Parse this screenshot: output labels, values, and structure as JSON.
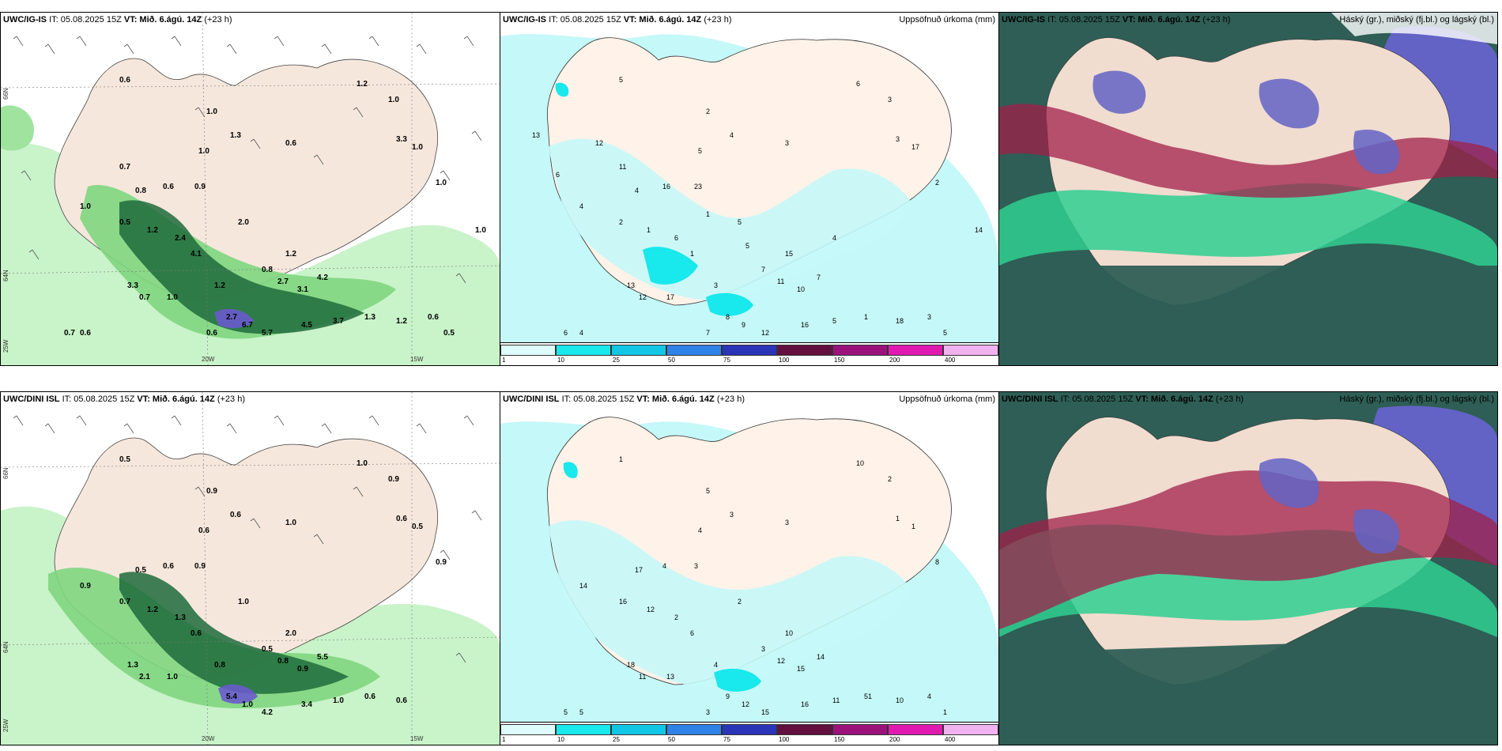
{
  "colors": {
    "land": "#f6e7dc",
    "sea": "#ffffff",
    "precip_light": "#c9f3c9",
    "precip_mid": "#7fd67f",
    "precip_dark": "#1f6b3c",
    "precip_heavy": "#6a5acd",
    "cloud_sea": "#2e5e55",
    "cloud_green": "#2fcf92",
    "cloud_high": "#6363c6",
    "cloud_red": "#a0204a"
  },
  "top_row": {
    "wind_panel": {
      "model": "UWC/IG-IS",
      "it_text": "IT: 05.08.2025 15Z",
      "vt_text": "VT: Mið. 6.ágú. 14Z",
      "lead": "(+23 h)",
      "lat_labels": [
        "66N",
        "64N",
        "25W"
      ],
      "lon_labels": [
        "20W",
        "15W"
      ],
      "values": [
        "0.6",
        "1.0",
        "1.2",
        "1.0",
        "1.3",
        "1.0",
        "0.6",
        "1.0",
        "1.0",
        "3.3",
        "1.0",
        "0.8",
        "0.6",
        "0.9",
        "0.5",
        "1.2",
        "2.4",
        "4.1",
        "2.0",
        "1.2",
        "0.8",
        "1.2",
        "3.3",
        "0.7",
        "1.0",
        "2.7",
        "3.1",
        "4.2",
        "2.7",
        "6.7",
        "5.7",
        "4.5",
        "3.7",
        "1.3",
        "1.2",
        "0.6",
        "0.7",
        "0.6",
        "0.6",
        "0.5",
        "0.7",
        "1.0"
      ]
    },
    "precip_panel": {
      "model": "UWC/IG-IS",
      "it_text": "IT: 05.08.2025 15Z",
      "vt_text": "VT: Mið. 6.ágú. 14Z",
      "lead": "(+23 h)",
      "title": "Uppsöfnuð úrkoma (mm)",
      "values": [
        "5",
        "2",
        "6",
        "3",
        "4",
        "5",
        "3",
        "17",
        "2",
        "3",
        "4",
        "4",
        "16",
        "23",
        "2",
        "1",
        "6",
        "1",
        "5",
        "3",
        "7",
        "15",
        "13",
        "12",
        "17",
        "11",
        "10",
        "7",
        "8",
        "9",
        "12",
        "16",
        "5",
        "1",
        "18",
        "3",
        "6",
        "4",
        "7",
        "5",
        "11",
        "14",
        "13",
        "6",
        "12",
        "1",
        "5",
        "4"
      ],
      "scale": {
        "values": [
          "1",
          "10",
          "25",
          "50",
          "75",
          "100",
          "150",
          "200",
          "400"
        ],
        "colors": [
          "#dffcfc",
          "#19e8ec",
          "#12c7e6",
          "#2f82e8",
          "#2b35b8",
          "#63103f",
          "#9b137a",
          "#e01ab0",
          "#f1b2f0"
        ]
      }
    },
    "cloud_panel": {
      "model": "UWC/IG-IS",
      "it_text": "IT: 05.08.2025 15Z",
      "vt_text": "VT: Mið. 6.ágú. 14Z",
      "lead": "(+23 h)",
      "title": "Háský (gr.), miðský (fj.bl.) og lágský (bl.)"
    }
  },
  "bottom_row": {
    "wind_panel": {
      "model": "UWC/DINI ISL",
      "it_text": "IT: 05.08.2025 15Z",
      "vt_text": "VT: Mið. 6.ágú. 14Z",
      "lead": "(+23 h)",
      "lat_labels": [
        "66N",
        "64N",
        "25W"
      ],
      "lon_labels": [
        "20W",
        "15W"
      ],
      "values": [
        "0.5",
        "0.9",
        "1.0",
        "0.9",
        "0.6",
        "0.6",
        "1.0",
        "0.5",
        "0.9",
        "0.6",
        "0.9",
        "0.5",
        "0.6",
        "0.9",
        "0.7",
        "1.2",
        "1.3",
        "0.6",
        "1.0",
        "0.8",
        "0.5",
        "2.0",
        "1.3",
        "2.1",
        "1.0",
        "0.8",
        "0.9",
        "5.5",
        "5.4",
        "1.0",
        "4.2",
        "3.4",
        "1.0",
        "0.6",
        "0.6"
      ]
    },
    "precip_panel": {
      "model": "UWC/DINI ISL",
      "it_text": "IT: 05.08.2025 15Z",
      "vt_text": "VT: Mið. 6.ágú. 14Z",
      "lead": "(+23 h)",
      "title": "Uppsöfnuð úrkoma (mm)",
      "values": [
        "1",
        "5",
        "10",
        "2",
        "3",
        "4",
        "3",
        "1",
        "8",
        "1",
        "14",
        "17",
        "4",
        "3",
        "16",
        "12",
        "2",
        "6",
        "2",
        "4",
        "3",
        "10",
        "18",
        "11",
        "13",
        "12",
        "15",
        "14",
        "9",
        "12",
        "15",
        "16",
        "11",
        "51",
        "10",
        "4",
        "5",
        "5",
        "3",
        "1"
      ],
      "scale": {
        "values": [
          "1",
          "10",
          "25",
          "50",
          "75",
          "100",
          "150",
          "200",
          "400"
        ],
        "colors": [
          "#dffcfc",
          "#19e8ec",
          "#12c7e6",
          "#2f82e8",
          "#2b35b8",
          "#63103f",
          "#9b137a",
          "#e01ab0",
          "#f1b2f0"
        ]
      }
    },
    "cloud_panel": {
      "model": "UWC/DINI ISL",
      "it_text": "IT: 05.08.2025 15Z",
      "vt_text": "VT: Mið. 6.ágú. 14Z",
      "lead": "(+23 h)",
      "title": "Háský (gr.), miðský (fj.bl.) og lágský (bl.)"
    }
  }
}
